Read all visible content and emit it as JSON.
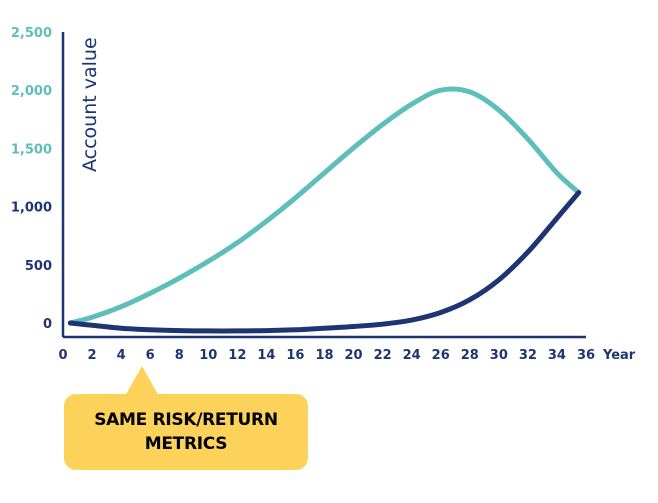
{
  "colors": {
    "teal": "#5ebfba",
    "navy": "#1f3573",
    "axis": "#1f3573",
    "callout": "#fcd25a"
  },
  "chart_data": {
    "type": "line",
    "ylabel": "Account value",
    "xlabel": "Year",
    "xlim": [
      0,
      36
    ],
    "ylim": [
      0,
      2500
    ],
    "x_ticks": [
      0,
      2,
      4,
      6,
      8,
      10,
      12,
      14,
      16,
      18,
      20,
      22,
      24,
      26,
      28,
      30,
      32,
      34,
      36
    ],
    "y_ticks": [
      0,
      500,
      1000,
      1500,
      2000,
      2500
    ],
    "y_tick_labels": [
      "0",
      "500",
      "1,000",
      "1,500",
      "2,000",
      "2,500"
    ],
    "series": [
      {
        "color": "#5ebfba",
        "x": [
          0.5,
          2,
          4,
          6,
          8,
          10,
          12,
          14,
          16,
          18,
          20,
          22,
          24,
          26,
          28,
          30,
          32,
          34,
          35.5
        ],
        "y": [
          0,
          50,
          140,
          255,
          385,
          530,
          690,
          875,
          1075,
          1290,
          1505,
          1705,
          1880,
          2000,
          1985,
          1830,
          1580,
          1290,
          1120
        ]
      },
      {
        "color": "#1f3573",
        "x": [
          0.5,
          2,
          4,
          6,
          8,
          10,
          12,
          14,
          16,
          18,
          20,
          22,
          24,
          26,
          28,
          30,
          32,
          34,
          35.5
        ],
        "y": [
          0,
          -20,
          -45,
          -58,
          -65,
          -68,
          -68,
          -65,
          -58,
          -45,
          -30,
          -10,
          25,
          90,
          200,
          370,
          610,
          900,
          1120
        ]
      }
    ]
  },
  "callout": {
    "line1": "SAME RISK/RETURN",
    "line2": "METRICS"
  }
}
